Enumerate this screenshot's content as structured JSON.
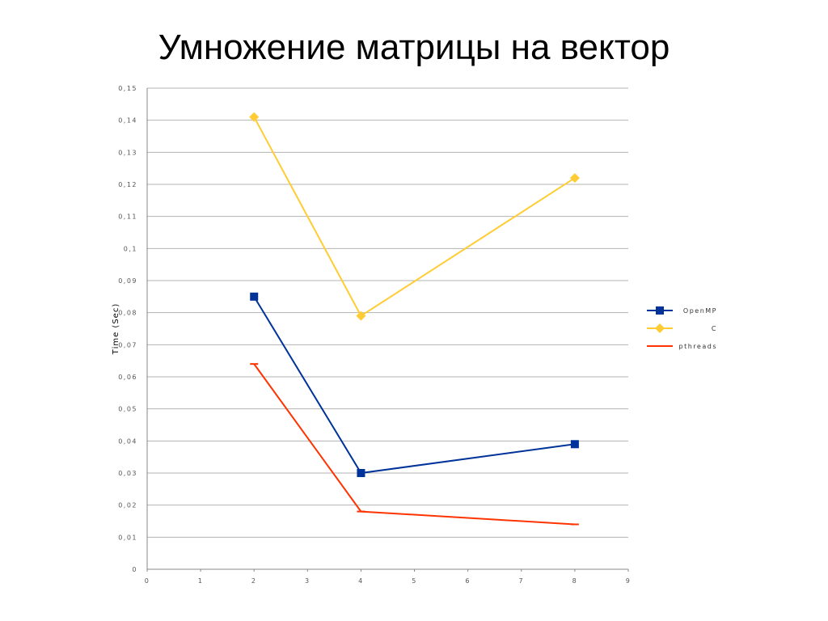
{
  "slide": {
    "title": "Умножение матрицы на вектор"
  },
  "chart_data": {
    "type": "scatter",
    "ylabel": "Time (Sec)",
    "xlim": [
      0,
      9
    ],
    "ylim": [
      0,
      0.15
    ],
    "x_ticks": [
      "0",
      "1",
      "2",
      "3",
      "4",
      "5",
      "6",
      "7",
      "8",
      "9"
    ],
    "y_ticks": [
      "0",
      "0,01",
      "0,02",
      "0,03",
      "0,04",
      "0,05",
      "0,06",
      "0,07",
      "0,08",
      "0,09",
      "0,1",
      "0,11",
      "0,12",
      "0,13",
      "0,14",
      "0,15"
    ],
    "grid": true,
    "legend_position": "right",
    "series": [
      {
        "name": "OpenMP",
        "color": "#003399",
        "marker": "square",
        "x": [
          2,
          4,
          8
        ],
        "y": [
          0.085,
          0.03,
          0.039
        ]
      },
      {
        "name": "C",
        "color": "#ffcc33",
        "marker": "diamond",
        "x": [
          2,
          4,
          8
        ],
        "y": [
          0.141,
          0.079,
          0.122
        ]
      },
      {
        "name": "pthreads",
        "color": "#ff3300",
        "marker": "dash",
        "x": [
          2,
          4,
          8
        ],
        "y": [
          0.064,
          0.018,
          0.014
        ]
      }
    ]
  }
}
